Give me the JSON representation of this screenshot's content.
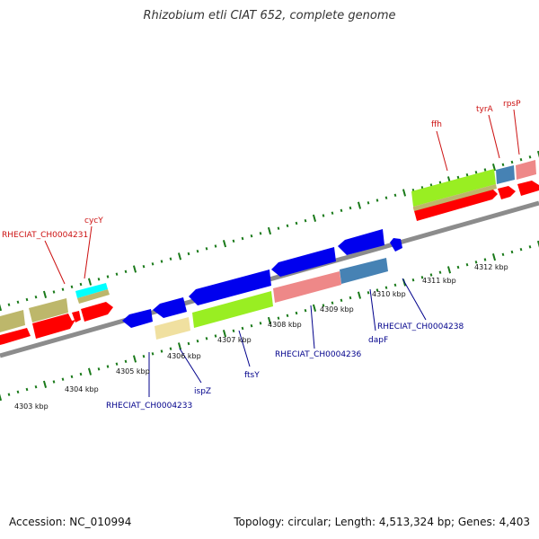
{
  "title": "Rhizobium etli CIAT 652, complete genome",
  "footer": {
    "accession": "Accession: NC_010994",
    "summary": "Topology: circular; Length: 4,513,324 bp; Genes: 4,403"
  },
  "colors": {
    "forward_strand_gene": "#ff0000",
    "reverse_strand_gene": "#0000ee",
    "backbone": "#8c8c8c",
    "tick": "#1a7a1a",
    "label_forward": "#cc1111",
    "label_reverse": "#00008b",
    "cog_green": "#99ee22",
    "cog_pink": "#ee8888",
    "cog_steelblue": "#4682b4",
    "cog_khaki": "#bdb76b",
    "cog_cyan": "#00ffff",
    "cog_wheat": "#f0e0a0"
  },
  "scale_labels": [
    "4303 kbp",
    "4304 kbp",
    "4305 kbp",
    "4306 kbp",
    "4307 kbp",
    "4308 kbp",
    "4309 kbp",
    "4310 kbp",
    "4311 kbp",
    "4312 kbp"
  ],
  "gene_labels_forward": [
    "RHECIAT_CH0004231",
    "cycY",
    "ffh",
    "tyrA",
    "rpsP"
  ],
  "gene_labels_reverse": [
    "RHECIAT_CH0004233",
    "ispZ",
    "ftsY",
    "RHECIAT_CH0004236",
    "dapF",
    "RHECIAT_CH0004238"
  ]
}
